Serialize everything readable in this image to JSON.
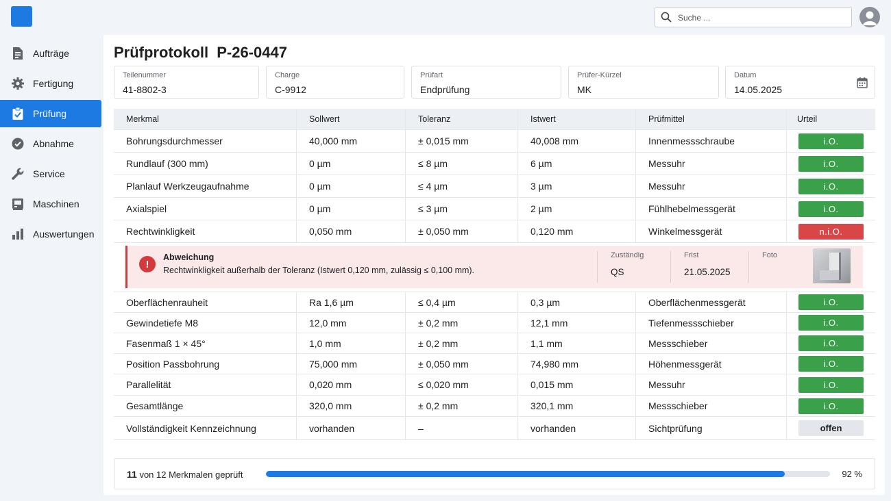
{
  "search": {
    "placeholder": "Suche ..."
  },
  "sidebar": {
    "items": [
      {
        "label": "Aufträge",
        "icon": "file-list-icon"
      },
      {
        "label": "Fertigung",
        "icon": "gear-icon"
      },
      {
        "label": "Prüfung",
        "icon": "clipboard-check-icon",
        "active": true
      },
      {
        "label": "Abnahme",
        "icon": "check-circle-icon"
      },
      {
        "label": "Service",
        "icon": "wrench-icon"
      },
      {
        "label": "Maschinen",
        "icon": "machine-icon"
      },
      {
        "label": "Auswertungen",
        "icon": "bar-chart-icon"
      }
    ]
  },
  "page": {
    "title": "Prüfprotokoll  P-26-0447"
  },
  "fields": {
    "teilenummer": {
      "label": "Teilenummer",
      "value": "41-8802-3"
    },
    "charge": {
      "label": "Charge",
      "value": "C-9912"
    },
    "pruefart": {
      "label": "Prüfart",
      "value": "Endprüfung"
    },
    "pruefer": {
      "label": "Prüfer-Kürzel",
      "value": "MK"
    },
    "datum": {
      "label": "Datum",
      "value": "14.05.2025"
    }
  },
  "table": {
    "headers": [
      "Merkmal",
      "Sollwert",
      "Toleranz",
      "Istwert",
      "Prüfmittel",
      "Urteil"
    ],
    "rows": [
      [
        "Bohrungsdurchmesser",
        "40,000 mm",
        "± 0,015 mm",
        "40,008 mm",
        "Innenmessschraube",
        "i.O."
      ],
      [
        "Rundlauf (300 mm)",
        "0 µm",
        "≤ 8 µm",
        "6 µm",
        "Messuhr",
        "i.O."
      ],
      [
        "Planlauf Werkzeugaufnahme",
        "0 µm",
        "≤ 4 µm",
        "3 µm",
        "Messuhr",
        "i.O."
      ],
      [
        "Axialspiel",
        "0 µm",
        "≤ 3 µm",
        "2 µm",
        "Fühlhebelmessgerät",
        "i.O."
      ],
      [
        "Rechtwinkligkeit",
        "0,050 mm",
        "± 0,050 mm",
        "0,120 mm",
        "Winkelmessgerät",
        "n.i.O."
      ],
      [
        "Oberflächenrauheit",
        "Ra 1,6 µm",
        "≤ 0,4 µm",
        "0,3 µm",
        "Oberflächenmessgerät",
        "i.O."
      ],
      [
        "Gewindetiefe M8",
        "12,0 mm",
        "± 0,2 mm",
        "12,1 mm",
        "Tiefenmessschieber",
        "i.O."
      ],
      [
        "Fasenmaß 1 × 45°",
        "1,0 mm",
        "± 0,2 mm",
        "1,1 mm",
        "Messschieber",
        "i.O."
      ],
      [
        "Position Passbohrung",
        "75,000 mm",
        "± 0,050 mm",
        "74,980 mm",
        "Höhenmessgerät",
        "i.O."
      ],
      [
        "Parallelität",
        "0,020 mm",
        "≤ 0,020 mm",
        "0,015 mm",
        "Messuhr",
        "i.O."
      ],
      [
        "Gesamtlänge",
        "320,0 mm",
        "± 0,2 mm",
        "320,1 mm",
        "Messschieber",
        "i.O."
      ],
      [
        "Vollständigkeit Kennzeichnung",
        "vorhanden",
        "–",
        "vorhanden",
        "Sichtprüfung",
        "offen"
      ]
    ]
  },
  "deviation": {
    "title": "Abweichung",
    "text": "Rechtwinkligkeit außerhalb der Toleranz (Istwert 0,120 mm, zulässig ≤ 0,100 mm).",
    "responsible_label": "Zuständig",
    "responsible_value": "QS",
    "deadline_label": "Frist",
    "deadline_value": "21.05.2025",
    "photo_label": "Foto"
  },
  "progress": {
    "count": "11",
    "text": "von 12 Merkmalen geprüft",
    "percent_label": "92 %",
    "fraction": 0.92
  },
  "colors": {
    "accent": "#1e7ae3",
    "ok": "#3aa14a",
    "nok": "#d94648",
    "deviation_bg": "#fbe9e9"
  }
}
